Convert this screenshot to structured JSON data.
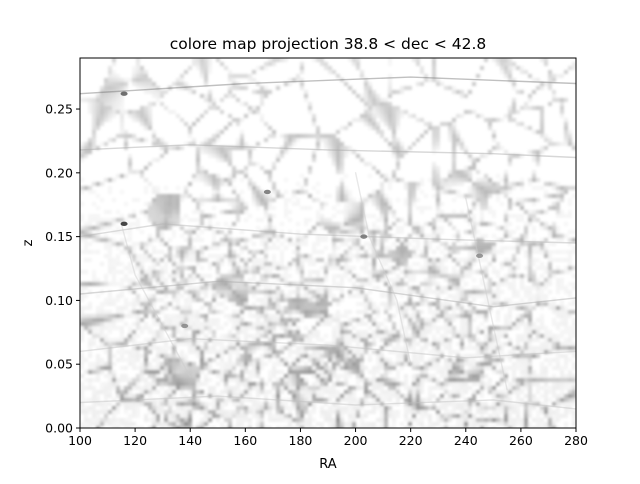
{
  "chart_data": {
    "type": "heatmap",
    "title": "colore map projection 38.8 < dec < 42.8",
    "xlabel": "RA",
    "ylabel": "z",
    "xlim": [
      100,
      280
    ],
    "ylim": [
      0.0,
      0.29
    ],
    "xticks": [
      100,
      120,
      140,
      160,
      180,
      200,
      220,
      240,
      260,
      280
    ],
    "yticks": [
      0.0,
      0.05,
      0.1,
      0.15,
      0.2,
      0.25
    ],
    "ytick_labels": [
      "0.00",
      "0.05",
      "0.10",
      "0.15",
      "0.20",
      "0.25"
    ],
    "colormap": "gray_r",
    "grid": false,
    "legend": "none",
    "filaments": [
      {
        "ra": [
          100,
          160,
          220,
          280
        ],
        "z": [
          0.262,
          0.27,
          0.275,
          0.27
        ],
        "intensity": 0.55
      },
      {
        "ra": [
          100,
          140,
          190,
          250,
          280
        ],
        "z": [
          0.218,
          0.222,
          0.218,
          0.215,
          0.212
        ],
        "intensity": 0.35
      },
      {
        "ra": [
          100,
          130,
          180,
          230,
          280
        ],
        "z": [
          0.15,
          0.16,
          0.152,
          0.148,
          0.145
        ],
        "intensity": 0.3
      },
      {
        "ra": [
          100,
          150,
          200,
          250,
          280
        ],
        "z": [
          0.105,
          0.115,
          0.11,
          0.095,
          0.102
        ],
        "intensity": 0.35
      },
      {
        "ra": [
          100,
          140,
          190,
          240,
          280
        ],
        "z": [
          0.06,
          0.07,
          0.065,
          0.055,
          0.06
        ],
        "intensity": 0.25
      },
      {
        "ra": [
          100,
          150,
          200,
          250,
          280
        ],
        "z": [
          0.02,
          0.025,
          0.018,
          0.022,
          0.015
        ],
        "intensity": 0.25
      },
      {
        "ra": [
          115,
          120,
          130,
          140
        ],
        "z": [
          0.16,
          0.12,
          0.08,
          0.04
        ],
        "intensity": 0.2
      },
      {
        "ra": [
          200,
          205,
          215,
          220
        ],
        "z": [
          0.2,
          0.15,
          0.1,
          0.05
        ],
        "intensity": 0.2
      },
      {
        "ra": [
          240,
          245,
          250,
          255
        ],
        "z": [
          0.18,
          0.13,
          0.08,
          0.03
        ],
        "intensity": 0.2
      }
    ],
    "knots": [
      {
        "ra": 116,
        "z": 0.262,
        "intensity": 0.7
      },
      {
        "ra": 116,
        "z": 0.16,
        "intensity": 0.9
      },
      {
        "ra": 168,
        "z": 0.185,
        "intensity": 0.6
      },
      {
        "ra": 203,
        "z": 0.15,
        "intensity": 0.6
      },
      {
        "ra": 245,
        "z": 0.135,
        "intensity": 0.5
      },
      {
        "ra": 138,
        "z": 0.08,
        "intensity": 0.5
      }
    ]
  }
}
